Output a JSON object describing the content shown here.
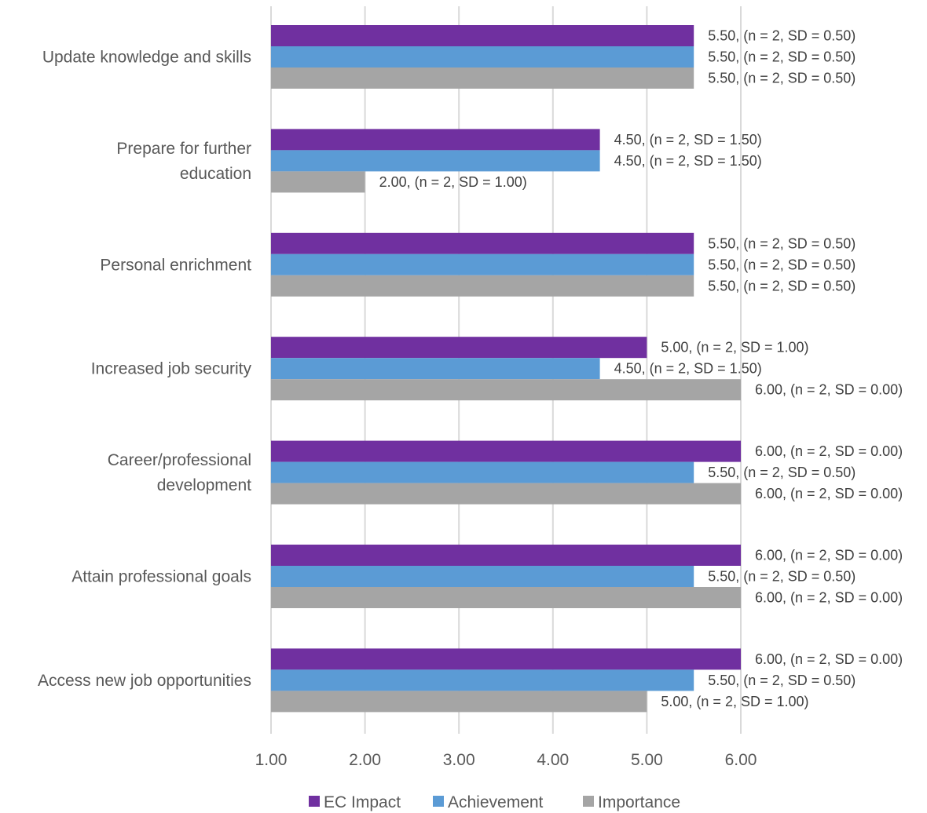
{
  "chart_data": {
    "type": "bar",
    "orientation": "horizontal",
    "categories": [
      "Update knowledge and skills",
      "Prepare for further education",
      "Personal enrichment",
      "Increased job security",
      "Career/professional development",
      "Attain professional goals",
      "Access new job opportunities"
    ],
    "category_lines": [
      [
        "Update knowledge and skills"
      ],
      [
        "Prepare for further",
        "education"
      ],
      [
        "Personal enrichment"
      ],
      [
        "Increased job security"
      ],
      [
        "Career/professional",
        "development"
      ],
      [
        "Attain professional goals"
      ],
      [
        "Access new job opportunities"
      ]
    ],
    "series": [
      {
        "name": "EC Impact",
        "color": "#7030a0",
        "values": [
          5.5,
          4.5,
          5.5,
          5.0,
          6.0,
          6.0,
          6.0
        ],
        "labels": [
          "5.50, (n = 2, SD = 0.50)",
          "4.50, (n = 2, SD = 1.50)",
          "5.50, (n = 2, SD = 0.50)",
          "5.00, (n = 2, SD = 1.00)",
          "6.00, (n = 2, SD = 0.00)",
          "6.00, (n = 2, SD = 0.00)",
          "6.00, (n = 2, SD = 0.00)"
        ]
      },
      {
        "name": "Achievement",
        "color": "#5b9bd5",
        "values": [
          5.5,
          4.5,
          5.5,
          4.5,
          5.5,
          5.5,
          5.5
        ],
        "labels": [
          "5.50, (n = 2, SD = 0.50)",
          "4.50, (n = 2, SD = 1.50)",
          "5.50, (n = 2, SD = 0.50)",
          "4.50, (n = 2, SD = 1.50)",
          "5.50, (n = 2, SD = 0.50)",
          "5.50, (n = 2, SD = 0.50)",
          "5.50, (n = 2, SD = 0.50)"
        ]
      },
      {
        "name": "Importance",
        "color": "#a5a5a5",
        "values": [
          5.5,
          2.0,
          5.5,
          6.0,
          6.0,
          6.0,
          5.0
        ],
        "labels": [
          "5.50, (n = 2, SD = 0.50)",
          "2.00, (n = 2, SD = 1.00)",
          "5.50, (n = 2, SD = 0.50)",
          "6.00, (n = 2, SD = 0.00)",
          "6.00, (n = 2, SD = 0.00)",
          "6.00, (n = 2, SD = 0.00)",
          "5.00, (n = 2, SD = 1.00)"
        ]
      }
    ],
    "xlim": [
      1,
      6
    ],
    "xticks": [
      "1.00",
      "2.00",
      "3.00",
      "4.00",
      "5.00",
      "6.00"
    ],
    "grid": true,
    "legend_position": "bottom",
    "title": "",
    "xlabel": "",
    "ylabel": ""
  }
}
